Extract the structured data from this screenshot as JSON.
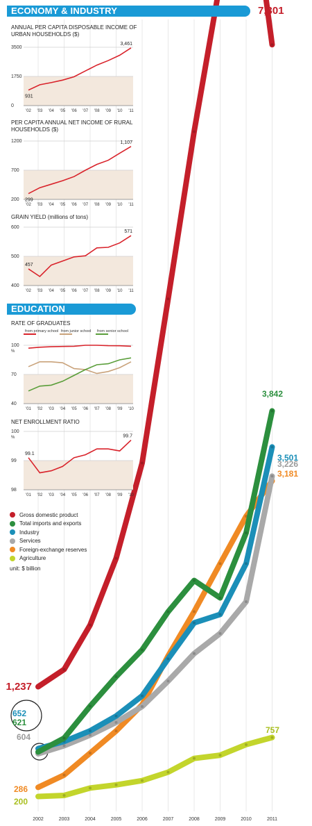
{
  "sections": {
    "economy": "ECONOMY & INDUSTRY",
    "education": "EDUCATION"
  },
  "charts": {
    "urban": {
      "title": "ANNUAL PER CAPITA DISPOSABLE INCOME OF URBAN HOUSEHOLDS ($)",
      "x": [
        "'02",
        "'03",
        "'04",
        "'05",
        "'06",
        "'07",
        "'08",
        "'09",
        "'10",
        "'11"
      ],
      "values": [
        931,
        1250,
        1380,
        1530,
        1730,
        2080,
        2430,
        2700,
        3020,
        3461
      ],
      "yticks": [
        "3500",
        "1750",
        "0"
      ],
      "ylim": [
        0,
        3500
      ],
      "labels": {
        "first": "931",
        "last": "3,461"
      }
    },
    "rural": {
      "title": "PER CAPITA ANNUAL NET INCOME OF RURAL HOUSEHOLDS ($)",
      "x": [
        "'02",
        "'03",
        "'04",
        "'05",
        "'06",
        "'07",
        "'08",
        "'09",
        "'10",
        "'11"
      ],
      "values": [
        299,
        400,
        460,
        520,
        590,
        700,
        800,
        870,
        990,
        1107
      ],
      "yticks": [
        "1200",
        "700",
        "200"
      ],
      "ylim": [
        200,
        1200
      ],
      "labels": {
        "first": "299",
        "last": "1,107"
      }
    },
    "grain": {
      "title": "GRAIN YIELD (millions of tons)",
      "x": [
        "'02",
        "'03",
        "'04",
        "'05",
        "'06",
        "'07",
        "'08",
        "'09",
        "'10",
        "'11"
      ],
      "values": [
        457,
        431,
        470,
        484,
        498,
        502,
        529,
        531,
        546,
        571
      ],
      "yticks": [
        "600",
        "500",
        "400"
      ],
      "ylim": [
        400,
        600
      ],
      "labels": {
        "first": "457",
        "last": "571"
      }
    },
    "graduates": {
      "title": "RATE OF GRADUATES",
      "x": [
        "'01",
        "'02",
        "'03",
        "'04",
        "'05",
        "'06",
        "'07",
        "'08",
        "'09",
        "'10"
      ],
      "series": [
        {
          "name": "from primary school",
          "color": "#d9232b",
          "values": [
            97,
            98,
            98.5,
            98.8,
            99,
            100,
            100,
            99.6,
            99.5,
            99
          ]
        },
        {
          "name": "from junior school",
          "color": "#c9a27a",
          "values": [
            78,
            83,
            83,
            82,
            76,
            75,
            71,
            73,
            77,
            83
          ]
        },
        {
          "name": "from senior school",
          "color": "#5a9e3a",
          "values": [
            53,
            58,
            59,
            63,
            69,
            75,
            80,
            81,
            85,
            87
          ]
        }
      ],
      "yticks": [
        "100",
        "70",
        "40"
      ],
      "yunit": "%",
      "ylim": [
        40,
        100
      ]
    },
    "enrollment": {
      "title": "NET ENROLLMENT RATIO",
      "x": [
        "'01",
        "'02",
        "'03",
        "'04",
        "'05",
        "'06",
        "'07",
        "'08",
        "'09",
        "'10"
      ],
      "values": [
        99.1,
        98.58,
        98.65,
        98.8,
        99.1,
        99.2,
        99.4,
        99.4,
        99.33,
        99.7
      ],
      "yticks": [
        "100",
        "99",
        "98"
      ],
      "yunit": "%",
      "ylim": [
        98,
        100
      ],
      "labels": {
        "first": "99.1",
        "last": "99.7"
      }
    }
  },
  "chart_data": {
    "type": "line",
    "unit": "unit: $ billion",
    "x": [
      "2002",
      "2003",
      "2004",
      "2005",
      "2006",
      "2007",
      "2008",
      "2009",
      "2010",
      "2011"
    ],
    "ylim": [
      0,
      7500
    ],
    "series": [
      {
        "name": "Gross domestic product",
        "color": "#c41f2a",
        "values": [
          1237,
          1400,
          1820,
          2450,
          3350,
          4900,
          6480,
          7890,
          9140,
          7301
        ],
        "start_label": "1,237",
        "end_label": "7,301"
      },
      {
        "name": "Total imports and exports",
        "color": "#2c8f3e",
        "values": [
          621,
          751,
          1053,
          1332,
          1585,
          1945,
          2240,
          2076,
          2690,
          3842
        ],
        "start_label": "621",
        "end_label": "3,842"
      },
      {
        "name": "Industry",
        "color": "#1b8fb8",
        "values": [
          652,
          720,
          820,
          960,
          1150,
          1500,
          1840,
          1920,
          2400,
          3501
        ],
        "start_label": "652",
        "end_label": "3,501"
      },
      {
        "name": "Services",
        "color": "#a9a9a9",
        "values": [
          604,
          680,
          780,
          900,
          1050,
          1290,
          1550,
          1740,
          2040,
          3226
        ],
        "start_label": "604",
        "end_label": "3,226"
      },
      {
        "name": "Foreign-exchange reserves",
        "color": "#f08a24",
        "values": [
          286,
          403,
          610,
          819,
          1066,
          1528,
          1946,
          2399,
          2847,
          3181
        ],
        "start_label": "286",
        "end_label": "3,181"
      },
      {
        "name": "Agriculture",
        "color": "#c3d52c",
        "values": [
          200,
          210,
          280,
          310,
          350,
          430,
          560,
          590,
          690,
          757
        ],
        "start_label": "200",
        "end_label": "757"
      }
    ]
  }
}
